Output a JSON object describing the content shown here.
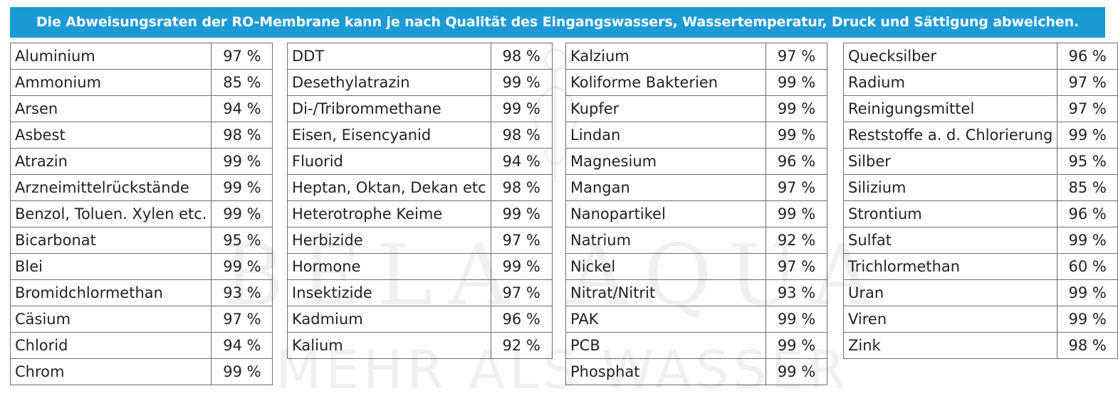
{
  "header": {
    "notice": "Die Abweisungsraten der RO-Membrane kann je nach Qualität des Eingangswassers, Wassertemperatur, Druck und Sättigung abweichen."
  },
  "watermark": {
    "brand": "BELA AQUA",
    "tagline": "MEHR ALS WASSER"
  },
  "columns": [
    {
      "rows": [
        {
          "name": "Aluminium",
          "rate": "97 %"
        },
        {
          "name": "Ammonium",
          "rate": "85 %"
        },
        {
          "name": "Arsen",
          "rate": "94 %"
        },
        {
          "name": "Asbest",
          "rate": "98 %"
        },
        {
          "name": "Atrazin",
          "rate": "99 %"
        },
        {
          "name": "Arzneimittelrückstände",
          "rate": "99 %"
        },
        {
          "name": "Benzol, Toluen. Xylen etc.",
          "rate": "99 %"
        },
        {
          "name": "Bicarbonat",
          "rate": "95 %"
        },
        {
          "name": "Blei",
          "rate": "99 %"
        },
        {
          "name": "Bromidchlormethan",
          "rate": "93 %"
        },
        {
          "name": "Cäsium",
          "rate": "97 %"
        },
        {
          "name": "Chlorid",
          "rate": "94 %"
        },
        {
          "name": "Chrom",
          "rate": "99 %"
        }
      ]
    },
    {
      "rows": [
        {
          "name": "DDT",
          "rate": "98 %"
        },
        {
          "name": "Desethylatrazin",
          "rate": "99 %"
        },
        {
          "name": "Di-/Tribrommethane",
          "rate": "99 %"
        },
        {
          "name": "Eisen, Eisencyanid",
          "rate": "98 %"
        },
        {
          "name": "Fluorid",
          "rate": "94 %"
        },
        {
          "name": "Heptan, Oktan, Dekan etc",
          "rate": "98 %"
        },
        {
          "name": "Heterotrophe Keime",
          "rate": "99 %"
        },
        {
          "name": "Herbizide",
          "rate": "97 %"
        },
        {
          "name": "Hormone",
          "rate": "99 %"
        },
        {
          "name": "Insektizide",
          "rate": "97 %"
        },
        {
          "name": "Kadmium",
          "rate": "96 %"
        },
        {
          "name": "Kalium",
          "rate": "92 %"
        }
      ]
    },
    {
      "rows": [
        {
          "name": "Kalzium",
          "rate": "97 %"
        },
        {
          "name": "Koliforme Bakterien",
          "rate": "99 %"
        },
        {
          "name": "Kupfer",
          "rate": "99 %"
        },
        {
          "name": "Lindan",
          "rate": "99 %"
        },
        {
          "name": "Magnesium",
          "rate": "96 %"
        },
        {
          "name": "Mangan",
          "rate": "97 %"
        },
        {
          "name": "Nanopartikel",
          "rate": "99 %"
        },
        {
          "name": "Natrium",
          "rate": "92 %"
        },
        {
          "name": "Nickel",
          "rate": "97 %"
        },
        {
          "name": "Nitrat/Nitrit",
          "rate": "93 %"
        },
        {
          "name": "PAK",
          "rate": "99 %"
        },
        {
          "name": "PCB",
          "rate": "99 %"
        },
        {
          "name": "Phosphat",
          "rate": "99 %"
        }
      ]
    },
    {
      "rows": [
        {
          "name": "Quecksilber",
          "rate": "96 %"
        },
        {
          "name": "Radium",
          "rate": "97 %"
        },
        {
          "name": "Reinigungsmittel",
          "rate": "97 %"
        },
        {
          "name": "Reststoffe a. d. Chlorierung",
          "rate": "99 %"
        },
        {
          "name": "Silber",
          "rate": "95 %"
        },
        {
          "name": "Silizium",
          "rate": "85 %"
        },
        {
          "name": "Strontium",
          "rate": "96 %"
        },
        {
          "name": "Sulfat",
          "rate": "99 %"
        },
        {
          "name": "Trichlormethan",
          "rate": "60 %"
        },
        {
          "name": "Uran",
          "rate": "99 %"
        },
        {
          "name": "Viren",
          "rate": "99 %"
        },
        {
          "name": "Zink",
          "rate": "98 %"
        }
      ]
    }
  ]
}
